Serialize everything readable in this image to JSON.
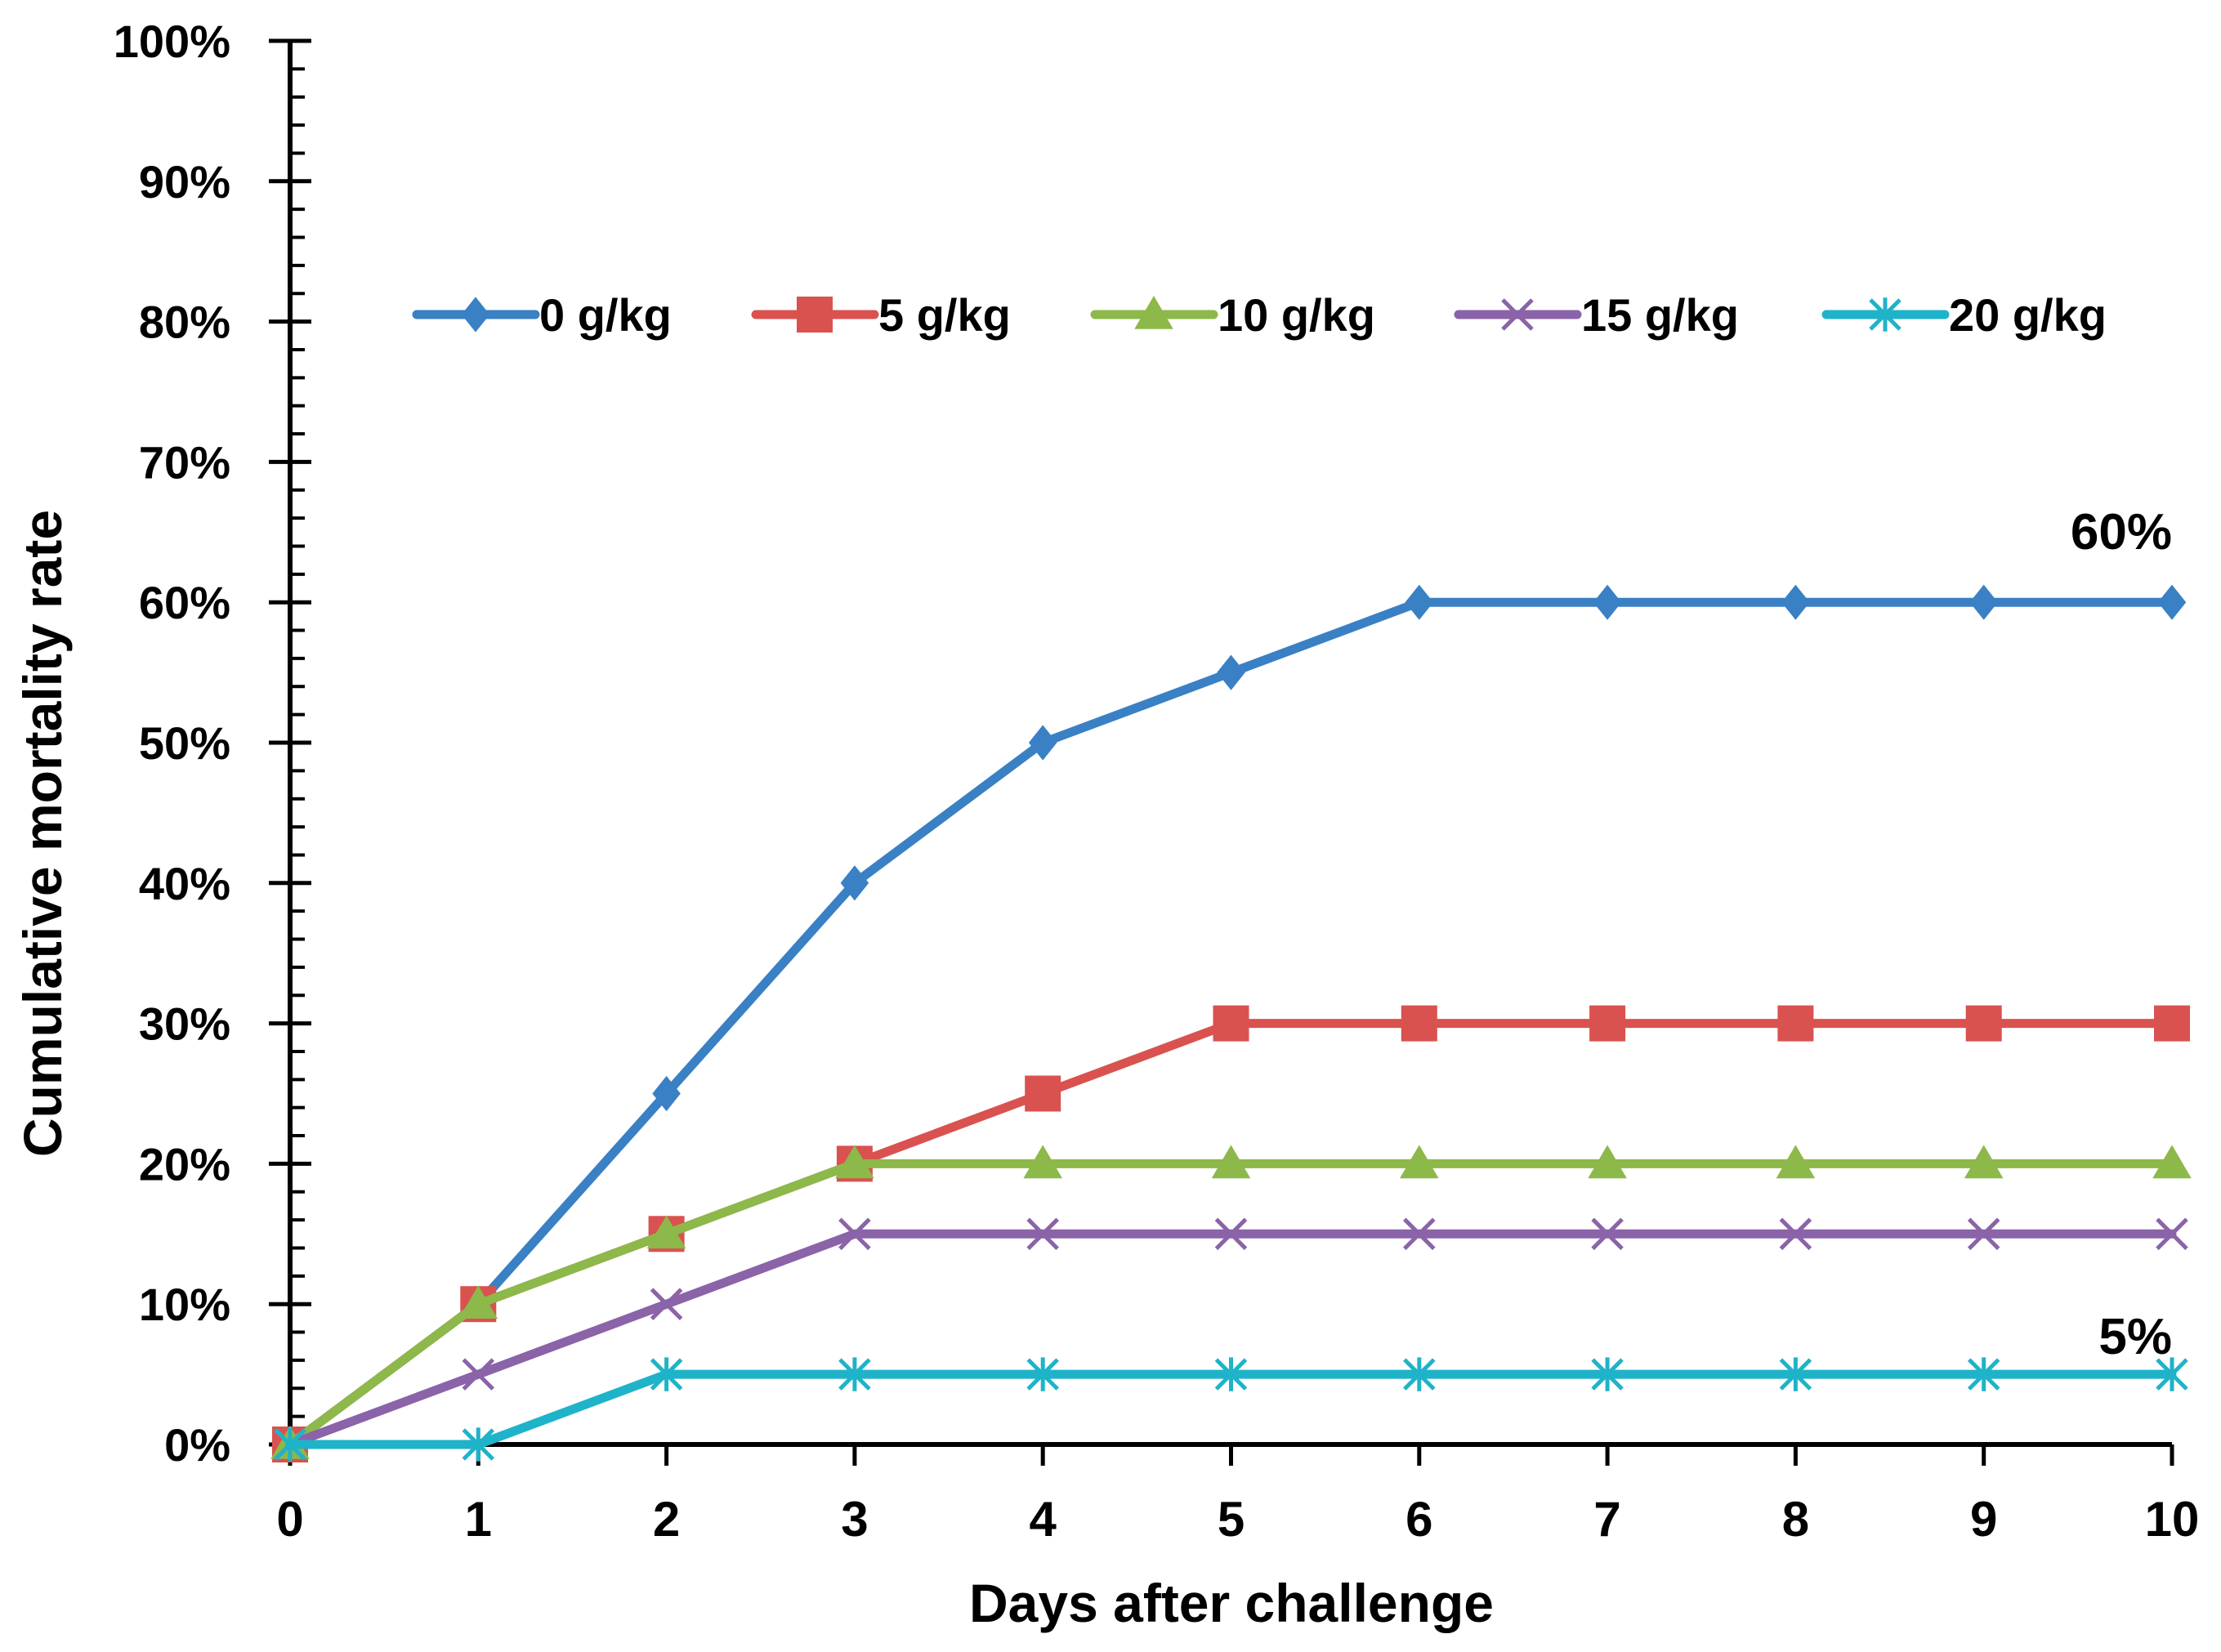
{
  "chart_data": {
    "type": "line",
    "title": "",
    "xlabel": "Days after challenge",
    "ylabel": "Cumulative mortality rate",
    "x": [
      0,
      1,
      2,
      3,
      4,
      5,
      6,
      7,
      8,
      9,
      10
    ],
    "x_tick_labels": [
      "0",
      "1",
      "2",
      "3",
      "4",
      "5",
      "6",
      "7",
      "8",
      "9",
      "10"
    ],
    "xlim": [
      0,
      10
    ],
    "ylim": [
      0,
      100
    ],
    "y_ticks": [
      0,
      10,
      20,
      30,
      40,
      50,
      60,
      70,
      80,
      90,
      100
    ],
    "y_tick_labels": [
      "0%",
      "10%",
      "20%",
      "30%",
      "40%",
      "50%",
      "60%",
      "70%",
      "80%",
      "90%",
      "100%"
    ],
    "grid": false,
    "legend_position": "top",
    "series": [
      {
        "name": "0 g/kg",
        "color": "#3A80C4",
        "marker": "diamond",
        "values": [
          0,
          10,
          25,
          40,
          50,
          55,
          60,
          60,
          60,
          60,
          60
        ]
      },
      {
        "name": "5 g/kg",
        "color": "#D9524F",
        "marker": "square",
        "values": [
          0,
          10,
          15,
          20,
          25,
          30,
          30,
          30,
          30,
          30,
          30
        ]
      },
      {
        "name": "10 g/kg",
        "color": "#8DB84A",
        "marker": "triangle",
        "values": [
          0,
          10,
          15,
          20,
          20,
          20,
          20,
          20,
          20,
          20,
          20
        ]
      },
      {
        "name": "15 g/kg",
        "color": "#8A63A8",
        "marker": "x",
        "values": [
          0,
          5,
          10,
          15,
          15,
          15,
          15,
          15,
          15,
          15,
          15
        ]
      },
      {
        "name": "20 g/kg",
        "color": "#1FB3C9",
        "marker": "star",
        "values": [
          0,
          0,
          5,
          5,
          5,
          5,
          5,
          5,
          5,
          5,
          5
        ]
      }
    ],
    "annotations": [
      {
        "text": "60%",
        "x": 10,
        "y": 60
      },
      {
        "text": "5%",
        "x": 10,
        "y": 5
      }
    ]
  }
}
